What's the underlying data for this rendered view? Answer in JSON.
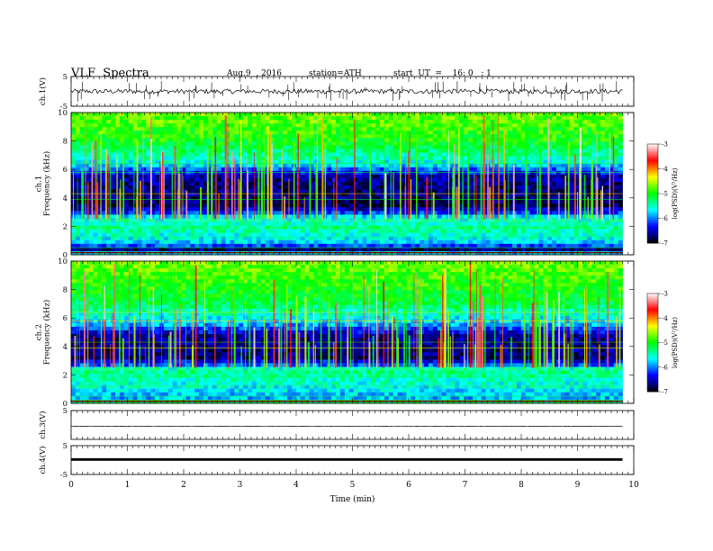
{
  "header": {
    "title": "VLF  Spectra",
    "date": "Aug.9  , 2016",
    "station": "station=ATH",
    "start_ut": "start  UT  =    16: 0   : 1"
  },
  "chart_data": {
    "type": "heatmap",
    "x_axis": {
      "label": "Time  (min)",
      "range": [
        0,
        10
      ],
      "ticks": [
        "0",
        "1",
        "2",
        "3",
        "4",
        "5",
        "6",
        "7",
        "8",
        "9",
        "10"
      ],
      "data_end": 9.8
    },
    "panels": [
      {
        "id": "ch1-waveform",
        "type": "line",
        "ylabel": "ch.1(V)",
        "ylim": [
          -5,
          5
        ],
        "ticks": [
          "5",
          "-5"
        ],
        "baseline": 0,
        "noise_amplitude": 0.8,
        "spike_count": 70,
        "spike_amplitude": 3.5
      },
      {
        "id": "ch1-spectrogram",
        "type": "heatmap",
        "ylabel": "ch.1\nFrequency  (kHz)",
        "ylabel_lines": [
          "ch.1",
          "Frequency  (kHz)"
        ],
        "ylim": [
          0,
          10
        ],
        "ticks": [
          "0",
          "2",
          "4",
          "6",
          "8",
          "10"
        ],
        "bands_khz_logpsd": [
          [
            0,
            -4.8
          ],
          [
            0.3,
            -6.9
          ],
          [
            0.8,
            -5.8
          ],
          [
            1.8,
            -5.4
          ],
          [
            2.6,
            -5.6
          ],
          [
            3.0,
            -6.3
          ],
          [
            3.5,
            -6.8
          ],
          [
            5.5,
            -6.6
          ],
          [
            6.5,
            -5.6
          ],
          [
            8.0,
            -5.0
          ],
          [
            10,
            -4.7
          ]
        ],
        "spike_count": 150,
        "colorbar": {
          "label": "log(PSD)(V²/Hz)",
          "range": [
            -7,
            -3
          ],
          "ticks": [
            "-3",
            "-4",
            "-5",
            "-6",
            "-7"
          ]
        }
      },
      {
        "id": "ch2-spectrogram",
        "type": "heatmap",
        "ylabel": "ch.2\nFrequency  (kHz)",
        "ylabel_lines": [
          "ch.2",
          "Frequency  (kHz)"
        ],
        "ylim": [
          0,
          10
        ],
        "ticks": [
          "0",
          "2",
          "4",
          "6",
          "8",
          "10"
        ],
        "bands_khz_logpsd": [
          [
            0,
            -4.8
          ],
          [
            0.3,
            -5.9
          ],
          [
            1.0,
            -5.7
          ],
          [
            2.3,
            -5.3
          ],
          [
            2.7,
            -6.1
          ],
          [
            3.2,
            -6.7
          ],
          [
            4.8,
            -6.6
          ],
          [
            5.5,
            -5.9
          ],
          [
            7.0,
            -5.2
          ],
          [
            8.5,
            -4.9
          ],
          [
            10,
            -4.7
          ]
        ],
        "spike_count": 160,
        "colorbar": {
          "label": "log(PSD)(V²/Hz)",
          "range": [
            -7,
            -3
          ],
          "ticks": [
            "-3",
            "-4",
            "-5",
            "-6",
            "-7"
          ]
        }
      },
      {
        "id": "ch3-waveform",
        "type": "line",
        "ylabel": "ch.3(V)",
        "ylim": [
          -5,
          5
        ],
        "ticks": [
          "5"
        ],
        "baseline": -0.5,
        "noise_amplitude": 0.05
      },
      {
        "id": "ch4-waveform",
        "type": "line",
        "ylabel": "ch.4(V)",
        "ylim": [
          -5,
          5
        ],
        "ticks": [
          "5",
          "-5"
        ],
        "baseline": 0.2,
        "trace_thickness_volts": 0.9
      }
    ],
    "colormap": [
      "#000000",
      "#00008c",
      "#0000ff",
      "#0080ff",
      "#00ffff",
      "#00ff80",
      "#00ff00",
      "#80ff00",
      "#ffff00",
      "#ff8000",
      "#ff0000",
      "#ff8080",
      "#ffffff"
    ]
  }
}
